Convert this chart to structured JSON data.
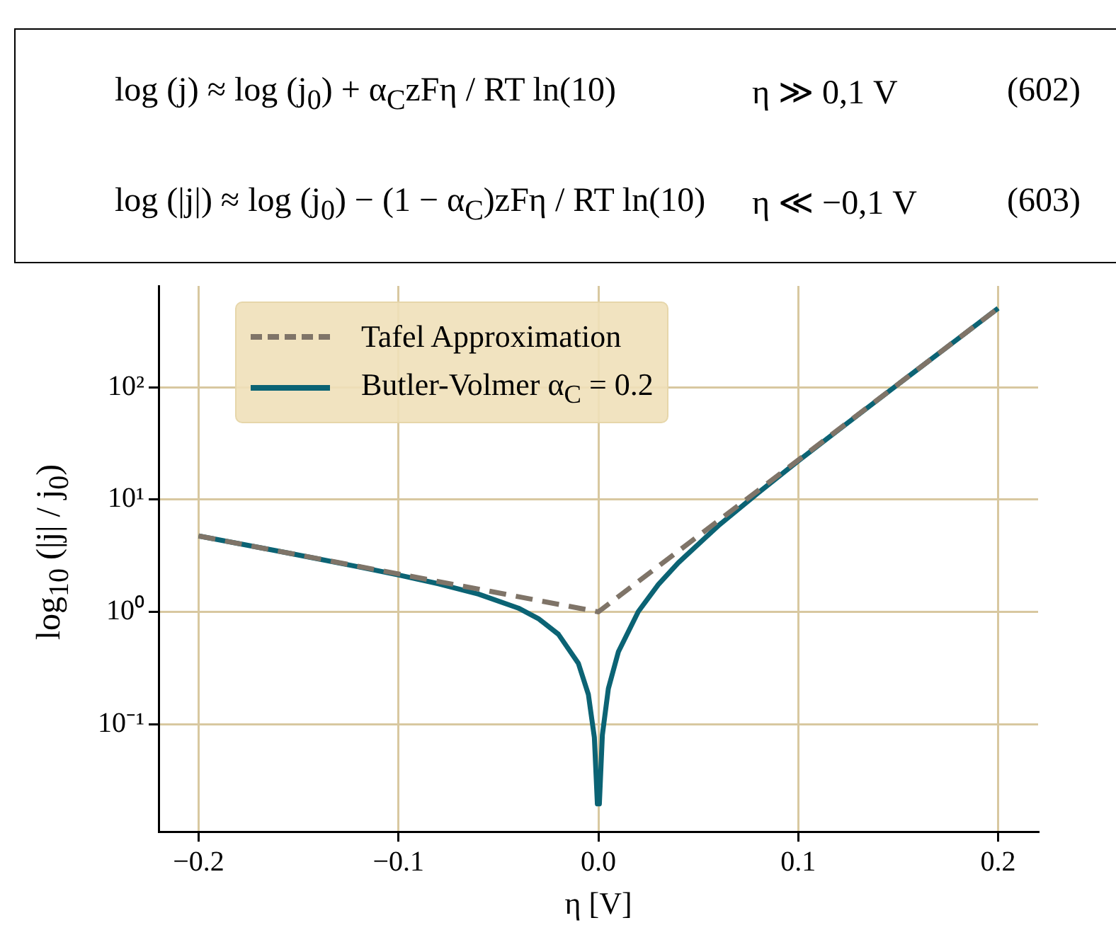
{
  "chart_data": {
    "type": "line",
    "xlabel": "η [V]",
    "ylabel": "log$_{10}$ (|j| / j$_{0}$)",
    "annotations": [
      "log (j) ≈ log (j$_{0}$) + α$_{C}$zFη / RT ln(10)",
      "η ≫ 0,1 V",
      "(602)",
      "log (|j|) ≈ log (j$_{0}$) − (1 − α$_{C}$)zFη / RT ln(10)",
      "η ≪ −0,1 V",
      "(603)"
    ],
    "series": [
      {
        "name": "Tafel Approximation",
        "color": "#7f7468",
        "line_style": "dashed",
        "x": [
          -0.2,
          0,
          0.2
        ],
        "values": [
          4.74,
          1,
          506.7
        ]
      },
      {
        "name": "Butler-Volmer α$_{C}$ = 0.2",
        "color": "#0b6374",
        "line_style": "solid",
        "x": [
          -0.2,
          -0.18,
          -0.16,
          -0.14,
          -0.12,
          -0.1,
          -0.08,
          -0.06,
          -0.04,
          -0.03,
          -0.02,
          -0.01,
          -0.005,
          -0.002,
          -0.0005,
          0.0005,
          0.002,
          0.005,
          0.01,
          0.02,
          0.03,
          0.04,
          0.06,
          0.08,
          0.1,
          0.12,
          0.14,
          0.16,
          0.18,
          0.2
        ],
        "values": [
          4.74,
          4.06,
          3.47,
          2.96,
          2.52,
          2.13,
          1.78,
          1.44,
          1.08,
          0.87,
          0.632,
          0.348,
          0.184,
          0.076,
          0.0195,
          0.0195,
          0.08,
          0.207,
          0.44,
          1.008,
          1.75,
          2.74,
          5.85,
          11.5,
          22.1,
          41.6,
          77.9,
          145.6,
          271.6,
          506.5
        ]
      }
    ],
    "xlim": [
      -0.22,
      0.22
    ],
    "xticks": [
      {
        "value": -0.2,
        "label": "−0.2"
      },
      {
        "value": -0.1,
        "label": "−0.1"
      },
      {
        "value": 0,
        "label": "0.0"
      },
      0.1,
      0.2
    ],
    "ylim": [
      0.011,
      800
    ],
    "yticks": [
      {
        "value": 0.1,
        "label": "10⁻¹"
      },
      {
        "value": 1,
        "label": "10⁰"
      },
      {
        "value": 10,
        "label": "10¹"
      },
      {
        "value": 100,
        "label": "10²"
      }
    ],
    "log": "y",
    "grid": true,
    "legend": "top left",
    "marker": "none"
  }
}
